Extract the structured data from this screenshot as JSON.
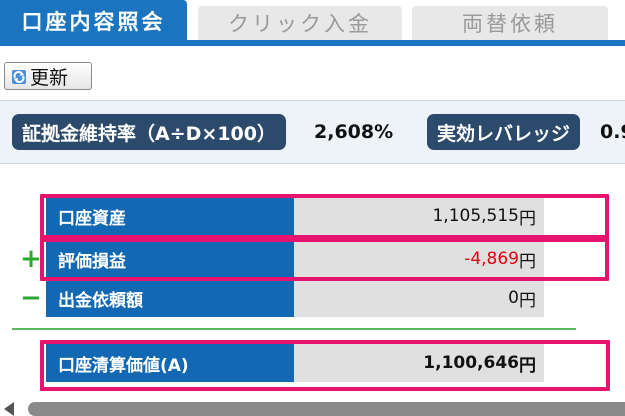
{
  "tabs": [
    {
      "label": "口座内容照会",
      "active": true
    },
    {
      "label": "クリック入金",
      "active": false
    },
    {
      "label": "両替依頼",
      "active": false
    }
  ],
  "toolbar": {
    "refresh_label": "更新",
    "refresh_icon": "refresh-icon"
  },
  "ratio": {
    "margin_label": "証拠金維持率（A÷D×100）",
    "margin_value": "2,608%",
    "leverage_label": "実効レバレッジ",
    "leverage_value": "0.9"
  },
  "account": {
    "rows": [
      {
        "sign": "",
        "label": "口座資産",
        "value": "1,105,515",
        "unit": "円"
      },
      {
        "sign": "+",
        "label": "評価損益",
        "value": "-4,869",
        "unit": "円"
      },
      {
        "sign": "−",
        "label": "出金依頼額",
        "value": "0",
        "unit": "円"
      }
    ],
    "total": {
      "label": "口座清算価値(A)",
      "value": "1,100,646",
      "unit": "円"
    }
  },
  "colors": {
    "tab_active": "#1a74bf",
    "label_bg": "#1268b3",
    "highlight": "#e6136f",
    "negative": "#e60012",
    "sign": "#2aa830"
  }
}
